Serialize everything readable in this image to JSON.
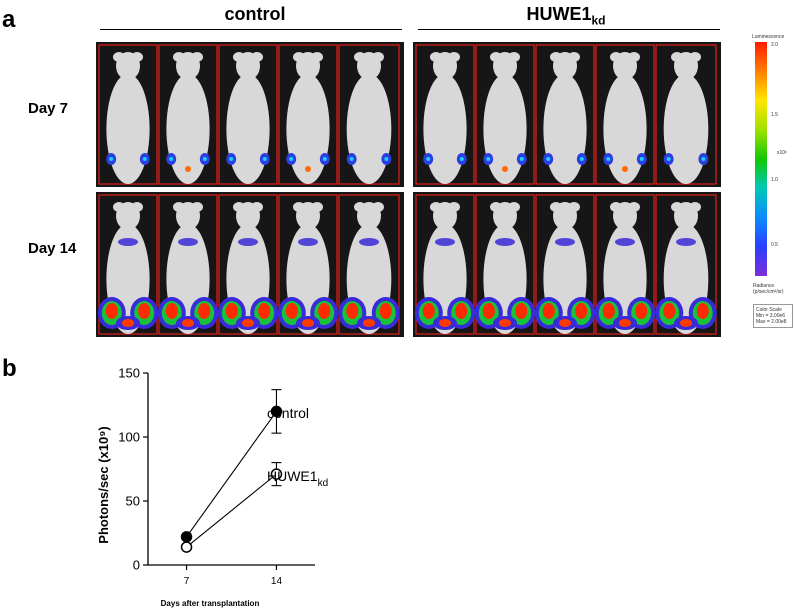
{
  "panels": {
    "a": "a",
    "b": "b"
  },
  "groups": {
    "control": "control",
    "huwe_main": "HUWE1",
    "huwe_sub": "kd"
  },
  "rows": [
    "Day 7",
    "Day 14"
  ],
  "colorbar": {
    "title": "Luminescence",
    "max_tick": "2.0",
    "ticks": [
      "1.5",
      "1.0",
      "0.5"
    ],
    "exponent": "x10⁸",
    "unit_line1": "Radiance",
    "unit_line2": "(p/sec/cm²/sr)",
    "scale_line1": "Color Scale",
    "scale_line2": "Min = 3.00e6",
    "scale_line3": "Max = 2.00e8"
  },
  "colors": {
    "background_dark": "#161616",
    "mouse": "#d8d8d8",
    "roi_box": "#e0201b"
  },
  "chart_data": {
    "type": "line",
    "x": [
      7,
      14
    ],
    "xticks": [
      "7",
      "14"
    ],
    "xlabel": "Days after transplantation",
    "ylabel": "Photons/sec (x10⁹)",
    "ylim": [
      0,
      150
    ],
    "yticks": [
      0,
      50,
      100,
      150
    ],
    "series": [
      {
        "name": "control",
        "values": [
          22,
          120
        ],
        "err": [
          0,
          17
        ],
        "marker": "filled"
      },
      {
        "name": "HUWE1kd",
        "display_main": "HUWE1",
        "display_sub": "kd",
        "values": [
          14,
          71
        ],
        "err": [
          0,
          9
        ],
        "marker": "open"
      }
    ]
  }
}
